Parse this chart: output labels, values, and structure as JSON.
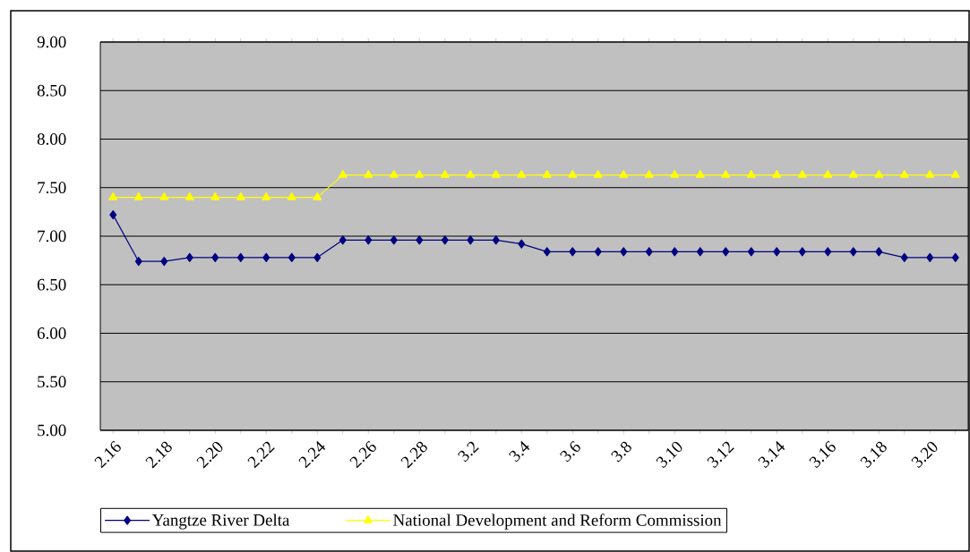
{
  "chart_data": {
    "type": "line",
    "categories": [
      "2.16",
      null,
      "2.18",
      null,
      "2.20",
      null,
      "2.22",
      null,
      "2.24",
      null,
      "2.26",
      null,
      "2.28",
      null,
      "3.2",
      null,
      "3.4",
      null,
      "3.6",
      null,
      "3.8",
      null,
      "3.10",
      null,
      "3.12",
      null,
      "3.14",
      null,
      "3.16",
      null,
      "3.18",
      null,
      "3.20",
      null
    ],
    "series": [
      {
        "name": "Yangtze River Delta",
        "color": "#000080",
        "marker": "diamond",
        "values": [
          7.22,
          6.74,
          6.74,
          6.78,
          6.78,
          6.78,
          6.78,
          6.78,
          6.78,
          6.96,
          6.96,
          6.96,
          6.96,
          6.96,
          6.96,
          6.96,
          6.92,
          6.84,
          6.84,
          6.84,
          6.84,
          6.84,
          6.84,
          6.84,
          6.84,
          6.84,
          6.84,
          6.84,
          6.84,
          6.84,
          6.84,
          6.78,
          6.78,
          6.78
        ]
      },
      {
        "name": "National Development and Reform Commission",
        "color": "#ffff00",
        "marker": "triangle",
        "values": [
          7.4,
          7.4,
          7.4,
          7.4,
          7.4,
          7.4,
          7.4,
          7.4,
          7.4,
          7.63,
          7.63,
          7.63,
          7.63,
          7.63,
          7.63,
          7.63,
          7.63,
          7.63,
          7.63,
          7.63,
          7.63,
          7.63,
          7.63,
          7.63,
          7.63,
          7.63,
          7.63,
          7.63,
          7.63,
          7.63,
          7.63,
          7.63,
          7.63,
          7.63
        ]
      }
    ],
    "ylim": [
      5,
      9
    ],
    "yticks": [
      {
        "value": 5,
        "label": "5.00"
      },
      {
        "value": 5.5,
        "label": "5.50"
      },
      {
        "value": 6,
        "label": "6.00"
      },
      {
        "value": 6.5,
        "label": "6.50"
      },
      {
        "value": 7,
        "label": "7.00"
      },
      {
        "value": 7.5,
        "label": "7.50"
      },
      {
        "value": 8,
        "label": "8.00"
      },
      {
        "value": 8.5,
        "label": "8.50"
      },
      {
        "value": 9,
        "label": "9.00"
      }
    ],
    "grid": "y",
    "legend": "bottom"
  }
}
